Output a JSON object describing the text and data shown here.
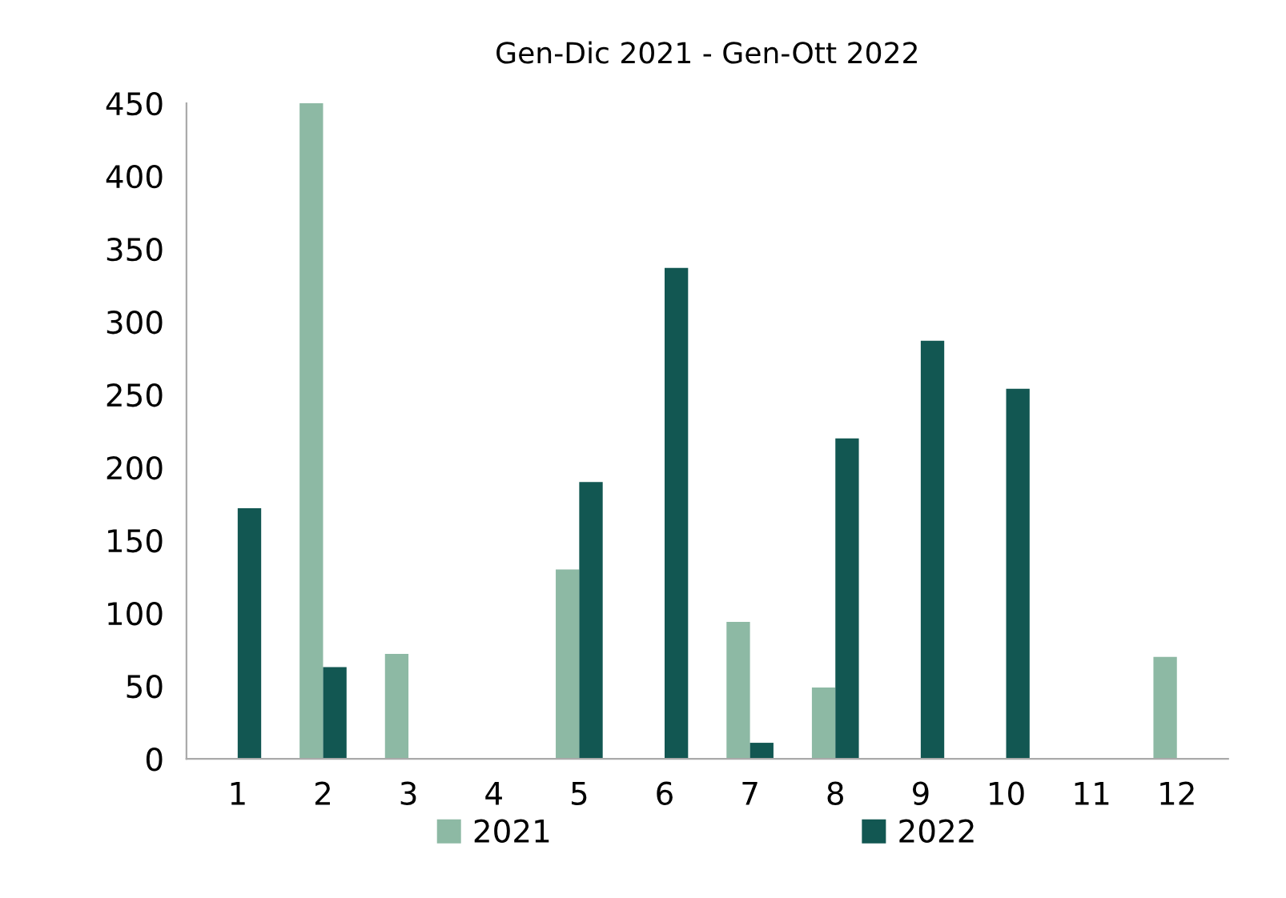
{
  "chart_data": {
    "type": "bar",
    "title": "Gen-Dic 2021 - Gen-Ott 2022",
    "categories": [
      "1",
      "2",
      "3",
      "4",
      "5",
      "6",
      "7",
      "8",
      "9",
      "10",
      "11",
      "12"
    ],
    "series": [
      {
        "name": "2021",
        "color": "#8db9a4",
        "values": [
          null,
          450,
          72,
          null,
          130,
          null,
          94,
          49,
          null,
          null,
          null,
          70
        ]
      },
      {
        "name": "2022",
        "color": "#125752",
        "values": [
          172,
          63,
          null,
          null,
          190,
          337,
          11,
          220,
          287,
          254,
          null,
          null
        ]
      }
    ],
    "ylim": [
      0,
      450
    ],
    "yticks": [
      0,
      50,
      100,
      150,
      200,
      250,
      300,
      350,
      400,
      450
    ],
    "grid": false,
    "legend": "bottom"
  }
}
